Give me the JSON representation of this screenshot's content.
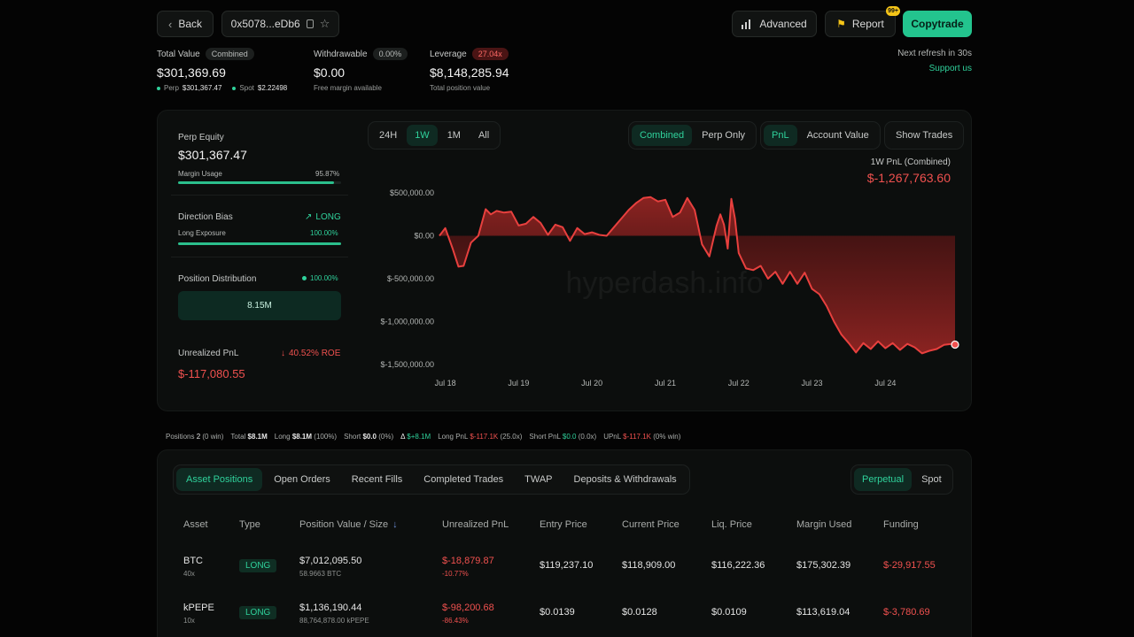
{
  "header": {
    "back_label": "Back",
    "address": "0x5078...eDb6",
    "advanced_label": "Advanced",
    "report_label": "Report",
    "report_badge": "99+",
    "copytrade_label": "Copytrade",
    "refresh_text": "Next refresh in 30s",
    "support_label": "Support us"
  },
  "summary": {
    "total_value_label": "Total Value",
    "total_value_tag": "Combined",
    "total_value": "$301,369.69",
    "perp_label": "Perp",
    "perp_value": "$301,367.47",
    "spot_label": "Spot",
    "spot_value": "$2.22498",
    "withdrawable_label": "Withdrawable",
    "withdrawable_tag": "0.00%",
    "withdrawable_value": "$0.00",
    "withdrawable_sub": "Free margin available",
    "leverage_label": "Leverage",
    "leverage_tag": "27.04x",
    "leverage_value": "$8,148,285.94",
    "leverage_sub": "Total position value"
  },
  "left_panel": {
    "perp_equity_label": "Perp Equity",
    "perp_equity_value": "$301,367.47",
    "margin_usage_label": "Margin Usage",
    "margin_usage_value": "95.87%",
    "margin_usage_fraction": 0.9587,
    "direction_bias_label": "Direction Bias",
    "direction_bias_value": "LONG",
    "long_exposure_label": "Long Exposure",
    "long_exposure_value": "100.00%",
    "long_exposure_fraction": 1.0,
    "position_distribution_label": "Position Distribution",
    "position_distribution_value": "100.00%",
    "distribution_bar_value": "8.15M",
    "unrealized_pnl_label": "Unrealized PnL",
    "roe_value": "40.52% ROE",
    "unrealized_pnl_value": "$-117,080.55"
  },
  "chart_controls": {
    "ranges": [
      "24H",
      "1W",
      "1M",
      "All"
    ],
    "active_range": "1W",
    "modes": [
      "Combined",
      "Perp Only"
    ],
    "active_mode": "Combined",
    "metrics": [
      "PnL",
      "Account Value"
    ],
    "active_metric": "PnL",
    "show_trades_label": "Show Trades",
    "pnl_caption": "1W PnL (Combined)",
    "pnl_value": "$-1,267,763.60",
    "watermark": "hyperdash.info"
  },
  "chart_data": {
    "type": "area",
    "xlabel": "",
    "ylabel": "",
    "x_ticks": [
      "Jul 18",
      "Jul 19",
      "Jul 20",
      "Jul 21",
      "Jul 22",
      "Jul 23",
      "Jul 24"
    ],
    "y_ticks": [
      "$500,000.00",
      "$0.00",
      "$-500,000.00",
      "$-1,000,000.00",
      "$-1,500,000.00"
    ],
    "y_tick_values": [
      500000,
      0,
      -500000,
      -1000000,
      -1500000
    ],
    "ylim": [
      -1500000,
      500000
    ],
    "xlim": [
      17.92,
      24.95
    ],
    "grid": false,
    "series": [
      {
        "color": "#e8403e",
        "x": [
          17.92,
          18.0,
          18.1,
          18.18,
          18.25,
          18.35,
          18.45,
          18.55,
          18.62,
          18.7,
          18.8,
          18.9,
          19.0,
          19.1,
          19.2,
          19.3,
          19.4,
          19.5,
          19.6,
          19.7,
          19.8,
          19.9,
          20.0,
          20.1,
          20.2,
          20.3,
          20.4,
          20.5,
          20.6,
          20.7,
          20.8,
          20.9,
          21.0,
          21.1,
          21.2,
          21.3,
          21.4,
          21.5,
          21.6,
          21.7,
          21.75,
          21.8,
          21.85,
          21.9,
          21.95,
          22.0,
          22.1,
          22.2,
          22.3,
          22.4,
          22.5,
          22.6,
          22.7,
          22.8,
          22.9,
          23.0,
          23.1,
          23.2,
          23.3,
          23.4,
          23.5,
          23.6,
          23.7,
          23.8,
          23.9,
          24.0,
          24.1,
          24.2,
          24.3,
          24.4,
          24.5,
          24.6,
          24.7,
          24.8,
          24.9,
          24.95
        ],
        "y": [
          0,
          90000,
          -150000,
          -360000,
          -350000,
          -80000,
          0,
          310000,
          250000,
          290000,
          270000,
          280000,
          120000,
          140000,
          220000,
          150000,
          10000,
          130000,
          100000,
          -60000,
          90000,
          20000,
          40000,
          10000,
          0,
          100000,
          200000,
          300000,
          380000,
          440000,
          450000,
          400000,
          420000,
          220000,
          270000,
          440000,
          300000,
          -100000,
          -240000,
          120000,
          250000,
          130000,
          -150000,
          430000,
          200000,
          -200000,
          -380000,
          -400000,
          -350000,
          -500000,
          -420000,
          -560000,
          -420000,
          -560000,
          -430000,
          -620000,
          -680000,
          -820000,
          -1000000,
          -1150000,
          -1250000,
          -1360000,
          -1250000,
          -1320000,
          -1230000,
          -1310000,
          -1250000,
          -1330000,
          -1260000,
          -1300000,
          -1370000,
          -1340000,
          -1320000,
          -1270000,
          -1260000,
          -1267763.6
        ]
      }
    ]
  },
  "stats_bar": {
    "positions_label": "Positions",
    "positions_value": "2",
    "positions_sub": "(0 win)",
    "total_label": "Total",
    "total_value": "$8.1M",
    "long_label": "Long",
    "long_value": "$8.1M",
    "long_sub": "(100%)",
    "short_label": "Short",
    "short_value": "$0.0",
    "short_sub": "(0%)",
    "delta_label": "Δ",
    "delta_value": "$+8.1M",
    "long_pnl_label": "Long PnL",
    "long_pnl_value": "$-117.1K",
    "long_pnl_sub": "(25.0x)",
    "short_pnl_label": "Short PnL",
    "short_pnl_value": "$0.0",
    "short_pnl_sub": "(0.0x)",
    "upnl_label": "UPnL",
    "upnl_value": "$-117.1K",
    "upnl_sub": "(0% win)"
  },
  "tabs": {
    "items": [
      "Asset Positions",
      "Open Orders",
      "Recent Fills",
      "Completed Trades",
      "TWAP",
      "Deposits & Withdrawals"
    ],
    "active": "Asset Positions",
    "market_toggle": [
      "Perpetual",
      "Spot"
    ],
    "active_market": "Perpetual"
  },
  "table": {
    "headers": [
      "Asset",
      "Type",
      "Position Value / Size",
      "Unrealized PnL",
      "Entry Price",
      "Current Price",
      "Liq. Price",
      "Margin Used",
      "Funding"
    ],
    "rows": [
      {
        "asset": "BTC",
        "leverage": "40x",
        "type": "LONG",
        "value": "$7,012,095.50",
        "size": "58.9663 BTC",
        "pnl": "$-18,879.87",
        "pnl_pct": "-10.77%",
        "entry": "$119,237.10",
        "current": "$118,909.00",
        "liq": "$116,222.36",
        "margin": "$175,302.39",
        "funding": "$-29,917.55"
      },
      {
        "asset": "kPEPE",
        "leverage": "10x",
        "type": "LONG",
        "value": "$1,136,190.44",
        "size": "88,764,878.00 kPEPE",
        "pnl": "$-98,200.68",
        "pnl_pct": "-86.43%",
        "entry": "$0.0139",
        "current": "$0.0128",
        "liq": "$0.0109",
        "margin": "$113,619.04",
        "funding": "$-3,780.69"
      }
    ]
  }
}
